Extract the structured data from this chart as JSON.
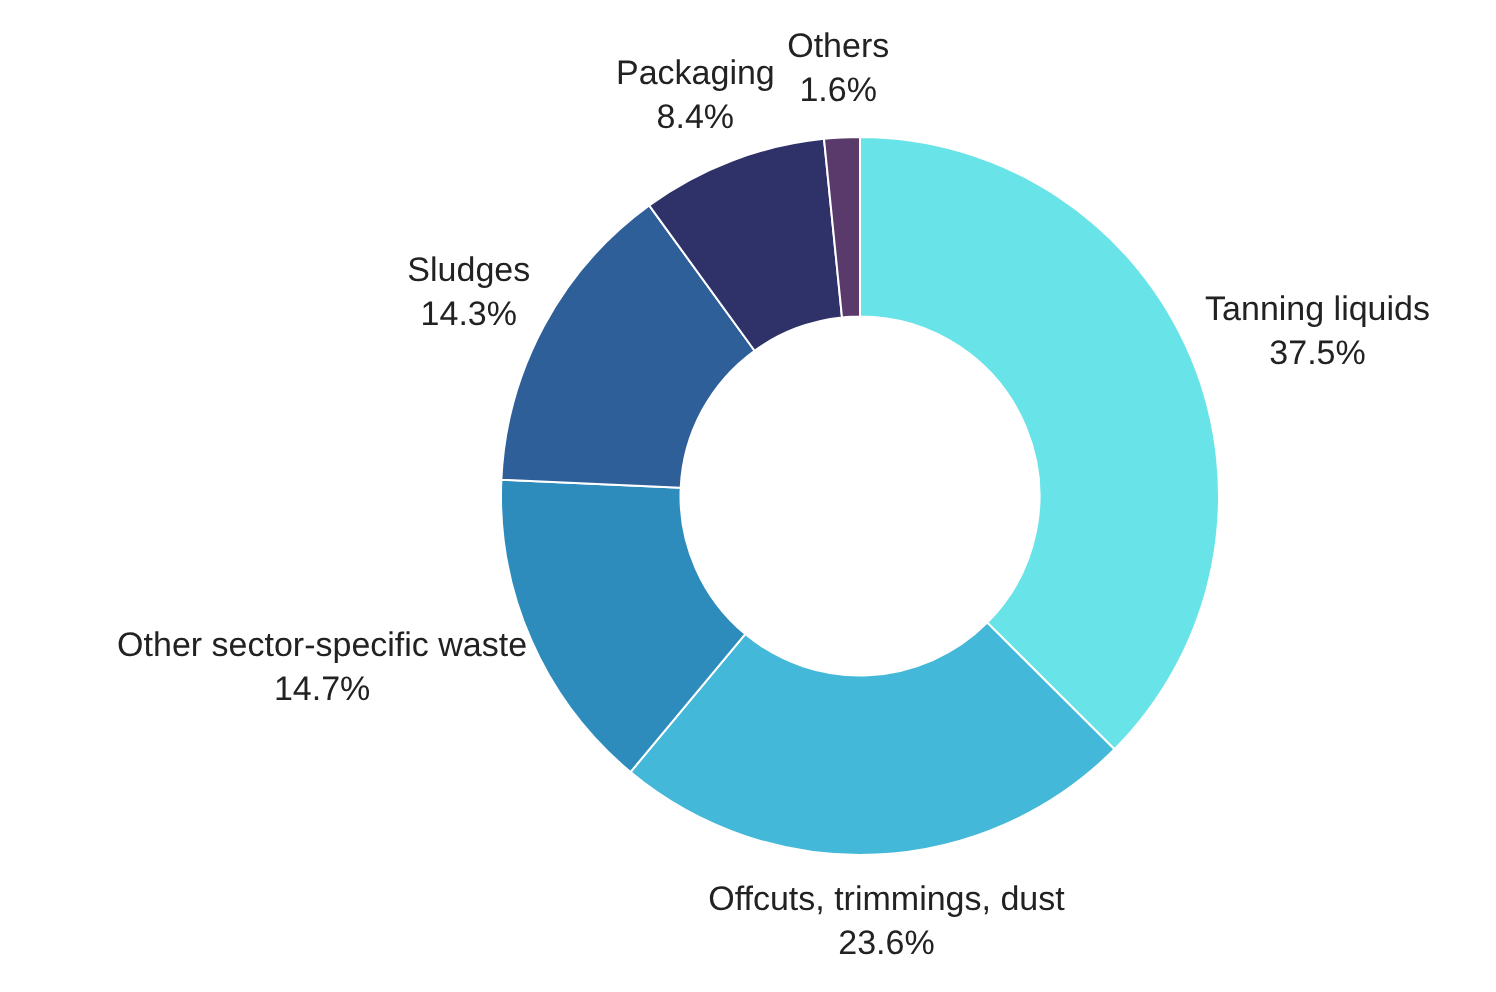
{
  "chart_data": {
    "type": "donut",
    "categories": [
      "Tanning liquids",
      "Offcuts, trimmings, dust",
      "Other sector-specific waste",
      "Sludges",
      "Packaging",
      "Others"
    ],
    "values": [
      37.5,
      23.6,
      14.7,
      14.3,
      8.4,
      1.6
    ],
    "value_labels": [
      "37.5%",
      "23.6%",
      "14.7%",
      "14.3%",
      "8.4%",
      "1.6%"
    ],
    "colors": [
      "#68e3e8",
      "#44b8d8",
      "#2e8cbd",
      "#2e5f99",
      "#2e3268",
      "#5a3a6a"
    ],
    "legend": false
  }
}
